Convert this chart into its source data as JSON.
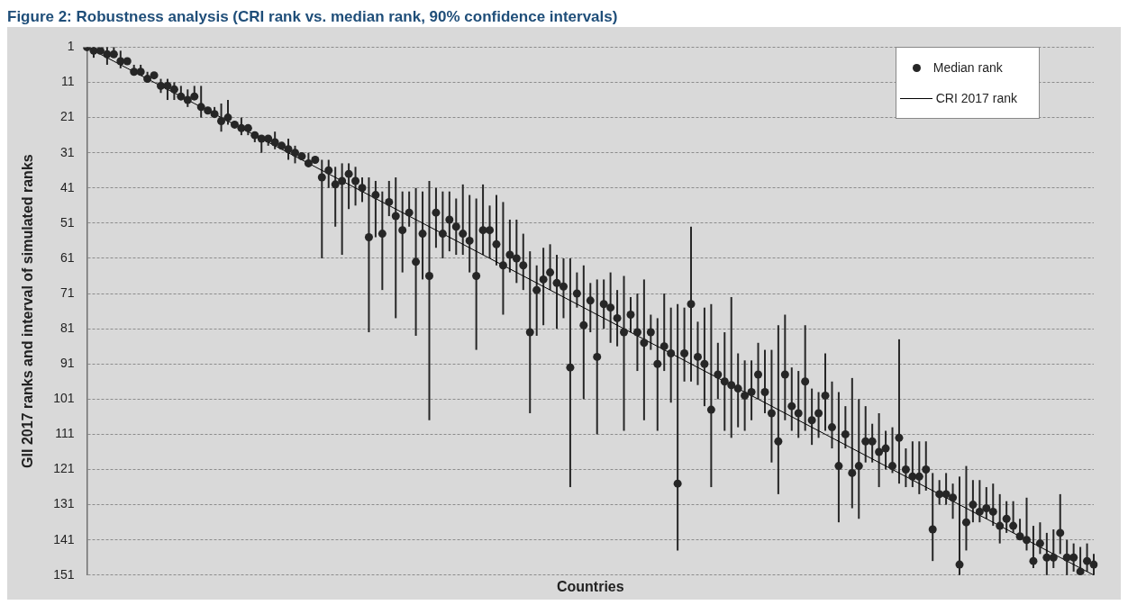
{
  "chart_data": {
    "type": "scatter",
    "title": "Figure 2: Robustness analysis (CRI rank vs. median rank, 90% confidence intervals)",
    "xlabel": "Countries",
    "ylabel": "GII 2017 ranks and interval of simulated ranks",
    "categories": [
      null,
      null,
      null,
      null,
      null,
      null,
      null,
      null,
      null,
      null,
      null,
      null,
      null,
      null,
      null,
      null,
      null,
      null,
      null,
      null,
      null,
      null,
      null,
      null,
      null,
      null,
      null,
      null,
      null,
      null,
      null,
      null,
      null,
      null,
      null,
      null,
      null,
      null,
      null,
      null,
      null,
      null,
      null,
      null,
      null,
      null,
      null,
      null,
      null,
      null,
      null,
      null,
      null,
      null,
      null,
      null,
      null,
      null,
      null,
      null,
      null,
      null,
      null,
      null,
      null,
      null,
      null,
      null,
      null,
      null,
      null,
      null,
      null,
      null,
      null,
      null,
      null,
      null,
      null,
      null,
      null,
      null,
      null,
      null,
      null,
      null,
      null,
      null,
      null,
      null,
      null,
      null,
      null,
      null,
      null,
      null,
      null,
      null,
      null,
      null,
      null,
      null,
      null,
      null,
      null,
      null,
      null,
      null,
      null,
      null,
      null,
      null,
      null,
      null,
      null,
      null,
      null,
      null,
      null,
      null,
      null,
      null,
      null,
      null,
      null,
      null,
      null,
      null,
      null,
      null,
      null,
      null,
      null,
      null,
      null,
      null,
      null,
      null,
      null,
      null,
      null,
      null,
      null,
      null,
      null,
      null,
      null,
      null,
      null,
      null,
      null
    ],
    "series": [
      {
        "name": "Median rank",
        "marker": "circle",
        "color": "#262626",
        "values": [
          1,
          2,
          2,
          3,
          3,
          5,
          5,
          8,
          8,
          10,
          9,
          12,
          12,
          13,
          15,
          16,
          15,
          18,
          19,
          20,
          22,
          21,
          23,
          24,
          24,
          26,
          27,
          27,
          28,
          29,
          30,
          31,
          32,
          34,
          33,
          38,
          36,
          40,
          39,
          37,
          39,
          41,
          55,
          43,
          54,
          45,
          49,
          53,
          48,
          62,
          54,
          66,
          48,
          54,
          50,
          52,
          54,
          56,
          66,
          53,
          53,
          57,
          63,
          60,
          61,
          63,
          82,
          70,
          67,
          65,
          68,
          69,
          92,
          71,
          80,
          73,
          89,
          74,
          75,
          78,
          82,
          77,
          82,
          85,
          82,
          91,
          86,
          88,
          125,
          88,
          74,
          89,
          91,
          104,
          94,
          96,
          97,
          98,
          100,
          99,
          94,
          99,
          105,
          113,
          94,
          103,
          105,
          96,
          107,
          105,
          100,
          109,
          120,
          111,
          122,
          120,
          113,
          113,
          116,
          115,
          120,
          112,
          121,
          123,
          123,
          121,
          138,
          128,
          128,
          129,
          148,
          136,
          131,
          133,
          132,
          133,
          137,
          135,
          137,
          140,
          141,
          147,
          142,
          146,
          146,
          139,
          146,
          146,
          150,
          147,
          148
        ],
        "errors": [
          null,
          [
            1,
            4
          ],
          null,
          [
            1,
            6
          ],
          [
            1,
            4
          ],
          [
            2,
            7
          ],
          null,
          [
            6,
            9
          ],
          [
            6,
            9
          ],
          [
            8,
            11
          ],
          null,
          [
            10,
            14
          ],
          [
            10,
            16
          ],
          [
            11,
            16
          ],
          [
            12,
            16
          ],
          [
            13,
            18
          ],
          [
            12,
            16
          ],
          [
            12,
            21
          ],
          [
            18,
            20
          ],
          [
            18,
            20
          ],
          [
            17,
            25
          ],
          [
            16,
            23
          ],
          null,
          [
            21,
            26
          ],
          [
            23,
            26
          ],
          [
            25,
            28
          ],
          [
            26,
            31
          ],
          [
            26,
            29
          ],
          [
            25,
            30
          ],
          [
            28,
            30
          ],
          [
            27,
            33
          ],
          [
            29,
            34
          ],
          [
            31,
            33
          ],
          [
            31,
            35
          ],
          [
            32,
            34
          ],
          [
            33,
            61
          ],
          [
            33,
            41
          ],
          [
            35,
            52
          ],
          [
            34,
            60
          ],
          [
            34,
            47
          ],
          [
            35,
            46
          ],
          [
            38,
            45
          ],
          [
            38,
            82
          ],
          [
            39,
            55
          ],
          [
            42,
            70
          ],
          [
            39,
            49
          ],
          [
            38,
            78
          ],
          [
            42,
            65
          ],
          [
            42,
            52
          ],
          [
            41,
            83
          ],
          [
            42,
            67
          ],
          [
            39,
            107
          ],
          [
            41,
            58
          ],
          [
            42,
            61
          ],
          [
            42,
            59
          ],
          [
            44,
            60
          ],
          [
            40,
            60
          ],
          [
            43,
            65
          ],
          [
            44,
            87
          ],
          [
            40,
            60
          ],
          [
            46,
            61
          ],
          [
            43,
            63
          ],
          [
            45,
            77
          ],
          [
            50,
            65
          ],
          [
            50,
            68
          ],
          [
            54,
            70
          ],
          [
            59,
            105
          ],
          [
            63,
            83
          ],
          [
            58,
            80
          ],
          [
            57,
            70
          ],
          [
            60,
            81
          ],
          [
            61,
            78
          ],
          [
            61,
            126
          ],
          [
            65,
            75
          ],
          [
            63,
            101
          ],
          [
            68,
            82
          ],
          [
            67,
            111
          ],
          [
            67,
            81
          ],
          [
            65,
            85
          ],
          [
            70,
            86
          ],
          [
            66,
            110
          ],
          [
            72,
            82
          ],
          [
            71,
            93
          ],
          [
            67,
            107
          ],
          [
            77,
            87
          ],
          [
            78,
            110
          ],
          [
            71,
            93
          ],
          [
            75,
            102
          ],
          [
            74,
            144
          ],
          [
            75,
            96
          ],
          [
            52,
            96
          ],
          [
            79,
            97
          ],
          [
            75,
            103
          ],
          [
            74,
            126
          ],
          [
            85,
            101
          ],
          [
            82,
            110
          ],
          [
            72,
            112
          ],
          [
            88,
            109
          ],
          [
            90,
            110
          ],
          [
            90,
            107
          ],
          [
            85,
            101
          ],
          [
            87,
            105
          ],
          [
            87,
            119
          ],
          [
            80,
            128
          ],
          [
            77,
            107
          ],
          [
            92,
            110
          ],
          [
            93,
            112
          ],
          [
            80,
            110
          ],
          [
            98,
            114
          ],
          [
            99,
            112
          ],
          [
            88,
            110
          ],
          [
            96,
            115
          ],
          [
            99,
            136
          ],
          [
            103,
            115
          ],
          [
            95,
            132
          ],
          [
            101,
            135
          ],
          [
            103,
            119
          ],
          [
            108,
            119
          ],
          [
            105,
            126
          ],
          [
            110,
            121
          ],
          [
            109,
            122
          ],
          [
            84,
            125
          ],
          [
            115,
            126
          ],
          [
            113,
            126
          ],
          [
            113,
            128
          ],
          [
            113,
            127
          ],
          [
            122,
            147
          ],
          [
            124,
            131
          ],
          [
            122,
            131
          ],
          [
            125,
            135
          ],
          [
            123,
            151
          ],
          [
            120,
            144
          ],
          [
            124,
            136
          ],
          [
            124,
            136
          ],
          [
            126,
            135
          ],
          [
            125,
            137
          ],
          [
            128,
            142
          ],
          [
            130,
            139
          ],
          [
            130,
            139
          ],
          [
            135,
            141
          ],
          [
            129,
            144
          ],
          [
            137,
            149
          ],
          [
            136,
            145
          ],
          [
            139,
            151
          ],
          [
            138,
            149
          ],
          [
            128,
            145
          ],
          [
            141,
            151
          ],
          [
            142,
            150
          ],
          [
            143,
            151
          ],
          [
            142,
            150
          ],
          [
            145,
            151
          ]
        ]
      },
      {
        "name": "CRI 2017 rank",
        "type": "line",
        "marker": "none",
        "line_style": "solid",
        "color": "#000000",
        "values": [
          1,
          2,
          3,
          4,
          5,
          6,
          7,
          8,
          9,
          10,
          11,
          12,
          13,
          14,
          15,
          16,
          17,
          18,
          19,
          20,
          21,
          22,
          23,
          24,
          25,
          26,
          27,
          28,
          29,
          30,
          31,
          32,
          33,
          34,
          35,
          36,
          37,
          38,
          39,
          40,
          41,
          42,
          43,
          44,
          45,
          46,
          47,
          48,
          49,
          50,
          51,
          52,
          53,
          54,
          55,
          56,
          57,
          58,
          59,
          60,
          61,
          62,
          63,
          64,
          65,
          66,
          67,
          68,
          69,
          70,
          71,
          72,
          73,
          74,
          75,
          76,
          77,
          78,
          79,
          80,
          81,
          82,
          83,
          84,
          85,
          86,
          87,
          88,
          89,
          90,
          91,
          92,
          93,
          94,
          95,
          96,
          97,
          98,
          99,
          100,
          101,
          102,
          103,
          104,
          105,
          106,
          107,
          108,
          109,
          110,
          111,
          112,
          113,
          114,
          115,
          116,
          117,
          118,
          119,
          120,
          121,
          122,
          123,
          124,
          125,
          126,
          127,
          128,
          129,
          130,
          131,
          132,
          133,
          134,
          135,
          136,
          137,
          138,
          139,
          140,
          141,
          142,
          143,
          144,
          145,
          146,
          147,
          148,
          149,
          150,
          151
        ]
      }
    ],
    "ylim": [
      151,
      1
    ],
    "yticks": [
      1,
      11,
      21,
      31,
      41,
      51,
      61,
      71,
      81,
      91,
      101,
      111,
      121,
      131,
      141,
      151
    ],
    "grid": "y",
    "legend": "top right",
    "tick_labels": "y"
  }
}
